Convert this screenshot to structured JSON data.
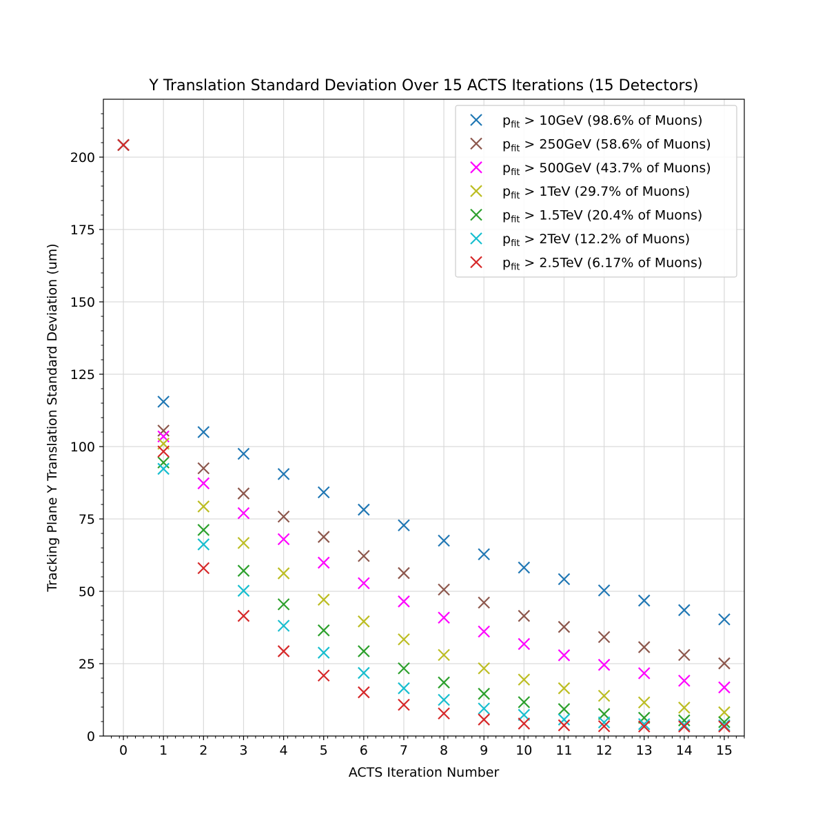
{
  "chart_data": {
    "type": "scatter",
    "title": "Y Translation Standard Deviation Over 15 ACTS Iterations (15 Detectors)",
    "xlabel": "ACTS Iteration Number",
    "ylabel": "Tracking Plane Y Translation Standard Deviation (um)",
    "xlim": [
      -0.5,
      15.5
    ],
    "ylim": [
      0,
      220
    ],
    "xticks": [
      "0",
      "1",
      "2",
      "3",
      "4",
      "5",
      "6",
      "7",
      "8",
      "9",
      "10",
      "11",
      "12",
      "13",
      "14",
      "15"
    ],
    "yticks": [
      "0",
      "25",
      "50",
      "75",
      "100",
      "125",
      "150",
      "175",
      "200"
    ],
    "grid": true,
    "legend_position": "upper right",
    "marker": "x",
    "x": [
      0,
      1,
      2,
      3,
      4,
      5,
      6,
      7,
      8,
      9,
      10,
      11,
      12,
      13,
      14,
      15
    ],
    "series": [
      {
        "name": "p",
        "sub": "fit",
        "suffix": " > 10GeV (98.6% of Muons)",
        "color": "#1f77b4",
        "values": [
          204.2,
          115.5,
          105,
          97.5,
          90.5,
          84.2,
          78.2,
          72.8,
          67.5,
          62.8,
          58.2,
          54.2,
          50.3,
          46.8,
          43.5,
          40.3
        ]
      },
      {
        "name": "p",
        "sub": "fit",
        "suffix": " > 250GeV (58.6% of Muons)",
        "color": "#8c564b",
        "values": [
          204.2,
          105.5,
          92.5,
          83.8,
          75.8,
          68.8,
          62.2,
          56.3,
          50.6,
          46.1,
          41.5,
          37.7,
          34.2,
          30.7,
          28,
          25.1
        ]
      },
      {
        "name": "p",
        "sub": "fit",
        "suffix": " > 500GeV (43.7% of Muons)",
        "color": "#e377c2",
        "draw_color": "#ff00ff",
        "values": [
          204.2,
          103.5,
          87.3,
          77,
          68,
          59.9,
          52.8,
          46.5,
          40.9,
          36.1,
          31.8,
          27.9,
          24.6,
          21.7,
          19.1,
          16.8
        ]
      },
      {
        "name": "p",
        "sub": "fit",
        "suffix": " > 1TeV (29.7% of Muons)",
        "color": "#bcbd22",
        "values": [
          204.2,
          101,
          79.3,
          66.7,
          56.2,
          47.1,
          39.6,
          33.4,
          28,
          23.4,
          19.5,
          16.5,
          13.9,
          11.6,
          9.8,
          8.2
        ]
      },
      {
        "name": "p",
        "sub": "fit",
        "suffix": " > 1.5TeV (20.4% of Muons)",
        "color": "#2ca02c",
        "values": [
          204.2,
          94.5,
          71.2,
          57.1,
          45.5,
          36.5,
          29.3,
          23.4,
          18.5,
          14.6,
          11.7,
          9.3,
          7.6,
          6.3,
          5.4,
          4.8
        ]
      },
      {
        "name": "p",
        "sub": "fit",
        "suffix": " > 2TeV (12.2% of Muons)",
        "color": "#17becf",
        "values": [
          204.2,
          92.3,
          66.2,
          50.2,
          38.1,
          28.8,
          21.8,
          16.5,
          12.5,
          9.5,
          7.3,
          5.7,
          4.7,
          4.1,
          3.8,
          3.7
        ]
      },
      {
        "name": "p",
        "sub": "fit",
        "suffix": " > 2.5TeV (6.17% of Muons)",
        "color": "#d62728",
        "values": [
          204.2,
          98.3,
          58,
          41.5,
          29.3,
          20.9,
          15.1,
          10.8,
          7.8,
          5.7,
          4.3,
          3.7,
          3.4,
          3.3,
          3.3,
          3.3
        ]
      }
    ]
  }
}
